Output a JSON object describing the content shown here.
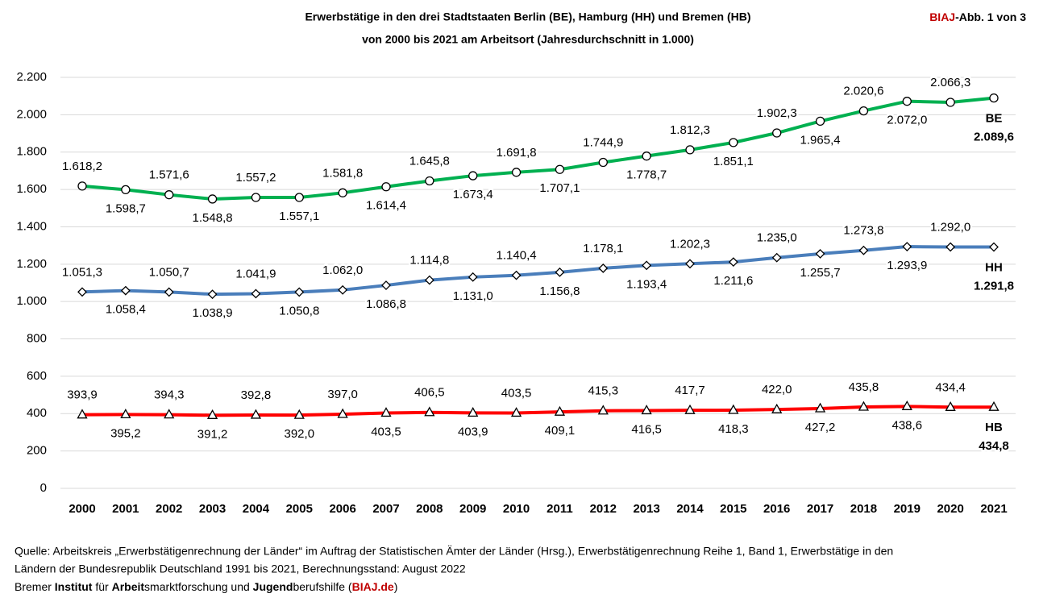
{
  "chart_data": {
    "type": "line",
    "title": [
      "Erwerbstätige in den drei Stadtstaaten Berlin (BE), Hamburg (HH) und Bremen (HB)",
      "von 2000 bis 2021 am Arbeitsort (Jahresdurchschnitt in 1.000)"
    ],
    "corner": [
      "BIAJ",
      "-Abb. 1 von 3"
    ],
    "categories": [
      "2000",
      "2001",
      "2002",
      "2003",
      "2004",
      "2005",
      "2006",
      "2007",
      "2008",
      "2009",
      "2010",
      "2011",
      "2012",
      "2013",
      "2014",
      "2015",
      "2016",
      "2017",
      "2018",
      "2019",
      "2020",
      "2021"
    ],
    "ylim": [
      0,
      2200
    ],
    "yticks": [
      0,
      200,
      400,
      600,
      800,
      {
        "value": 1000,
        "label": "1.000"
      },
      {
        "value": 1200,
        "label": "1.200"
      },
      {
        "value": 1400,
        "label": "1.400"
      },
      {
        "value": 1600,
        "label": "1.600"
      },
      {
        "value": 1800,
        "label": "1.800"
      },
      {
        "value": 2000,
        "label": "2.000"
      },
      {
        "value": 2200,
        "label": "2.200"
      }
    ],
    "grid": true,
    "series": [
      {
        "name": "BE",
        "color": "#00b050",
        "marker": "circle",
        "values": [
          1618.2,
          1598.7,
          1571.6,
          1548.8,
          1557.2,
          1557.1,
          1581.8,
          1614.4,
          1645.8,
          1673.4,
          1691.8,
          1707.1,
          1744.9,
          1778.7,
          1812.3,
          1851.1,
          1902.3,
          1965.4,
          2020.6,
          2072.0,
          2066.3,
          2089.6
        ],
        "value_labels": [
          "1.618,2",
          "1.598,7",
          "1.571,6",
          "1.548,8",
          "1.557,2",
          "1.557,1",
          "1.581,8",
          "1.614,4",
          "1.645,8",
          "1.673,4",
          "1.691,8",
          "1.707,1",
          "1.744,9",
          "1.778,7",
          "1.812,3",
          "1.851,1",
          "1.902,3",
          "1.965,4",
          "2.020,6",
          "2.072,0",
          "2.066,3",
          "2.089,6"
        ]
      },
      {
        "name": "HH",
        "color": "#4a7ebb",
        "marker": "diamond",
        "values": [
          1051.3,
          1058.4,
          1050.7,
          1038.9,
          1041.9,
          1050.8,
          1062.0,
          1086.8,
          1114.8,
          1131.0,
          1140.4,
          1156.8,
          1178.1,
          1193.4,
          1202.3,
          1211.6,
          1235.0,
          1255.7,
          1273.8,
          1293.9,
          1292.0,
          1291.8
        ],
        "value_labels": [
          "1.051,3",
          "1.058,4",
          "1.050,7",
          "1.038,9",
          "1.041,9",
          "1.050,8",
          "1.062,0",
          "1.086,8",
          "1.114,8",
          "1.131,0",
          "1.140,4",
          "1.156,8",
          "1.178,1",
          "1.193,4",
          "1.202,3",
          "1.211,6",
          "1.235,0",
          "1.255,7",
          "1.273,8",
          "1.293,9",
          "1.292,0",
          "1.291,8"
        ]
      },
      {
        "name": "HB",
        "color": "#ff0000",
        "marker": "triangle",
        "values": [
          393.9,
          395.2,
          394.3,
          391.2,
          392.8,
          392.0,
          397.0,
          403.5,
          406.5,
          403.9,
          403.5,
          409.1,
          415.3,
          416.5,
          417.7,
          418.3,
          422.0,
          427.2,
          435.8,
          438.6,
          434.4,
          434.8
        ],
        "value_labels": [
          "393,9",
          "395,2",
          "394,3",
          "391,2",
          "392,8",
          "392,0",
          "397,0",
          "403,5",
          "406,5",
          "403,9",
          "403,5",
          "409,1",
          "415,3",
          "416,5",
          "417,7",
          "418,3",
          "422,0",
          "427,2",
          "435,8",
          "438,6",
          "434,4",
          "434,8"
        ]
      }
    ],
    "source": [
      "Quelle: Arbeitskreis „Erwerbstätigenrechnung der Länder“ im Auftrag der Statistischen Ämter der Länder (Hrsg.), Erwerbstätigenrechnung Reihe 1, Band 1, Erwerbstätige in den",
      "Ländern der Bundesrepublik Deutschland 1991 bis 2021, Berechnungsstand: August 2022"
    ],
    "credit": [
      "Bremer ",
      "Institut",
      " für ",
      "Arbeit",
      "smarktforschung und ",
      "Jugend",
      "berufshilfe (",
      "BIAJ.de",
      ")"
    ]
  }
}
